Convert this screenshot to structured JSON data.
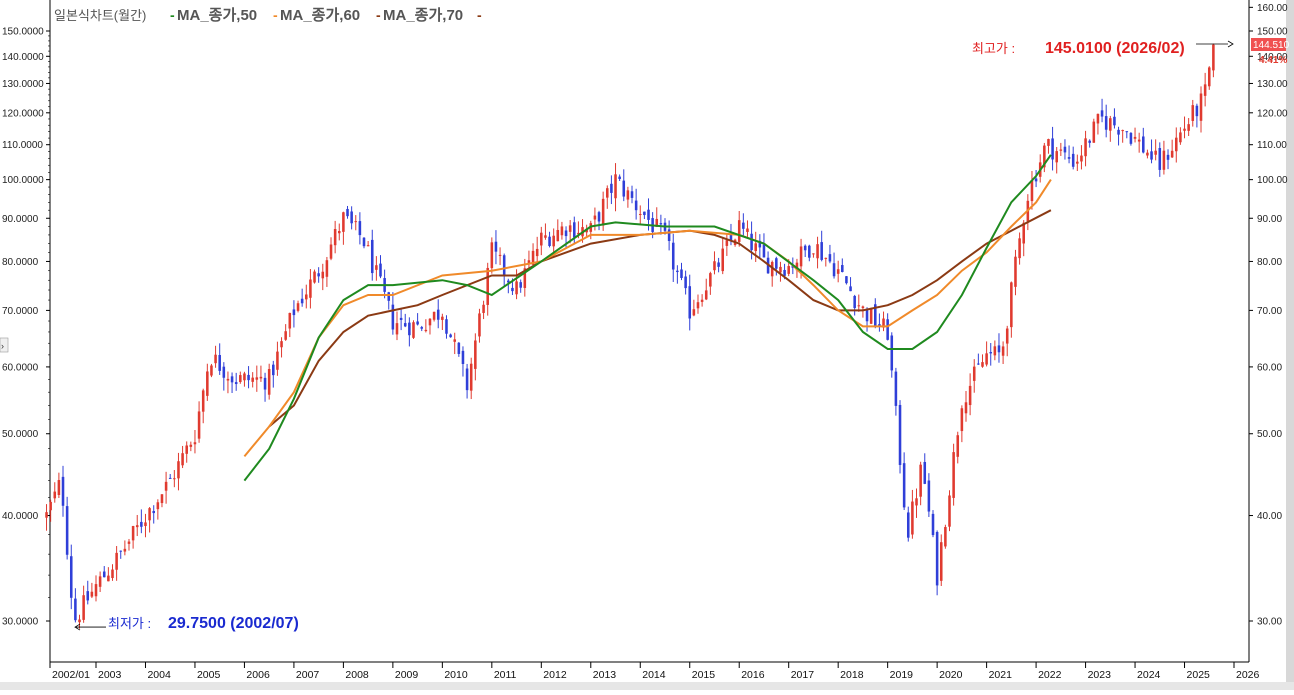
{
  "header": {
    "title": "일본식차트(월간)",
    "ma_labels": [
      "MA_종가,50",
      "MA_종가,60",
      "MA_종가,70"
    ]
  },
  "annotations": {
    "high": {
      "label": "최고가 :",
      "value": "145.0100 (2026/02)"
    },
    "low": {
      "label": "최저가 :",
      "value": "29.7500 (2002/07)"
    },
    "last_price": "144.510",
    "last_change": "4.41%"
  },
  "colors": {
    "up": "#e03a2f",
    "down": "#2f3fd8",
    "ma50": "#1f8a1f",
    "ma60": "#f08a2a",
    "ma70": "#8b3a14",
    "high_text": "#e02020",
    "low_text": "#1a2ad0",
    "last_box": "#f05050"
  },
  "chart_data": {
    "type": "candlestick",
    "period": "monthly",
    "scale": "log",
    "ylim": [
      29,
      160
    ],
    "y_ticks_left": [
      "150.0000",
      "140.0000",
      "130.0000",
      "120.0000",
      "110.0000",
      "100.0000",
      "90.0000",
      "80.0000",
      "70.0000",
      "60.0000",
      "50.0000",
      "40.0000",
      "30.0000"
    ],
    "y_ticks_right": [
      "160.00",
      "150.00",
      "140.00",
      "130.00",
      "120.00",
      "110.00",
      "100.00",
      "90.00",
      "80.00",
      "70.00",
      "60.00",
      "50.00",
      "40.00",
      "30.00"
    ],
    "x_ticks": [
      "2002/01",
      "2003",
      "2004",
      "2005",
      "2006",
      "2007",
      "2008",
      "2009",
      "2010",
      "2011",
      "2012",
      "2013",
      "2014",
      "2015",
      "2016",
      "2017",
      "2018",
      "2019",
      "2020",
      "2021",
      "2022",
      "2023",
      "2024",
      "2025",
      "2026"
    ],
    "price_path": [
      [
        2002.0,
        40
      ],
      [
        2002.3,
        44
      ],
      [
        2002.55,
        30
      ],
      [
        2003.0,
        33
      ],
      [
        2003.5,
        36
      ],
      [
        2004.0,
        40
      ],
      [
        2004.5,
        44
      ],
      [
        2005.0,
        50
      ],
      [
        2005.3,
        62
      ],
      [
        2005.8,
        58
      ],
      [
        2006.5,
        58
      ],
      [
        2007.0,
        70
      ],
      [
        2007.5,
        78
      ],
      [
        2008.0,
        90
      ],
      [
        2008.4,
        85
      ],
      [
        2009.0,
        68
      ],
      [
        2009.5,
        67
      ],
      [
        2010.0,
        70
      ],
      [
        2010.5,
        57
      ],
      [
        2011.0,
        82
      ],
      [
        2011.5,
        74
      ],
      [
        2012.0,
        85
      ],
      [
        2012.5,
        88
      ],
      [
        2013.0,
        87
      ],
      [
        2013.5,
        100
      ],
      [
        2014.0,
        92
      ],
      [
        2014.5,
        85
      ],
      [
        2015.0,
        70
      ],
      [
        2015.5,
        78
      ],
      [
        2016.0,
        88
      ],
      [
        2016.5,
        80
      ],
      [
        2017.0,
        79
      ],
      [
        2017.5,
        84
      ],
      [
        2018.0,
        78
      ],
      [
        2018.5,
        70
      ],
      [
        2019.0,
        66
      ],
      [
        2019.4,
        38
      ],
      [
        2019.7,
        46
      ],
      [
        2020.0,
        34
      ],
      [
        2020.5,
        55
      ],
      [
        2021.0,
        62
      ],
      [
        2021.3,
        62
      ],
      [
        2021.8,
        95
      ],
      [
        2022.2,
        110
      ],
      [
        2022.8,
        105
      ],
      [
        2023.3,
        118
      ],
      [
        2023.8,
        115
      ],
      [
        2024.5,
        104
      ],
      [
        2024.9,
        113
      ],
      [
        2025.4,
        125
      ],
      [
        2025.6,
        144.5
      ]
    ],
    "extremes": {
      "high": 145.01,
      "high_date": "2026/02",
      "low": 29.75,
      "low_date": "2002/07"
    },
    "ma": {
      "MA50": [
        [
          2006.0,
          44
        ],
        [
          2006.5,
          48
        ],
        [
          2007.0,
          55
        ],
        [
          2007.5,
          65
        ],
        [
          2008.0,
          72
        ],
        [
          2008.5,
          75
        ],
        [
          2009.0,
          75
        ],
        [
          2010.0,
          76
        ],
        [
          2010.5,
          75
        ],
        [
          2011.0,
          73
        ],
        [
          2012.0,
          80
        ],
        [
          2013.0,
          88
        ],
        [
          2013.5,
          89
        ],
        [
          2014.5,
          88
        ],
        [
          2015.5,
          88
        ],
        [
          2016.5,
          84
        ],
        [
          2017.5,
          76
        ],
        [
          2018.0,
          72
        ],
        [
          2018.5,
          66
        ],
        [
          2019.0,
          63
        ],
        [
          2019.5,
          63
        ],
        [
          2020.0,
          66
        ],
        [
          2020.5,
          73
        ],
        [
          2021.0,
          83
        ],
        [
          2021.5,
          94
        ],
        [
          2022.0,
          101
        ],
        [
          2022.3,
          107
        ]
      ],
      "MA60": [
        [
          2006.0,
          47
        ],
        [
          2006.5,
          51
        ],
        [
          2007.0,
          56
        ],
        [
          2007.5,
          65
        ],
        [
          2008.0,
          71
        ],
        [
          2008.5,
          73
        ],
        [
          2009.0,
          73
        ],
        [
          2010.0,
          77
        ],
        [
          2011.0,
          78
        ],
        [
          2012.0,
          80
        ],
        [
          2013.0,
          86
        ],
        [
          2014.0,
          86
        ],
        [
          2015.0,
          87
        ],
        [
          2016.0,
          86
        ],
        [
          2016.5,
          84
        ],
        [
          2017.0,
          80
        ],
        [
          2017.5,
          75
        ],
        [
          2018.0,
          70
        ],
        [
          2018.5,
          67
        ],
        [
          2019.0,
          67
        ],
        [
          2019.5,
          70
        ],
        [
          2020.0,
          73
        ],
        [
          2020.5,
          78
        ],
        [
          2021.0,
          82
        ],
        [
          2021.5,
          88
        ],
        [
          2022.0,
          94
        ],
        [
          2022.3,
          100
        ]
      ],
      "MA70": [
        [
          2006.5,
          51
        ],
        [
          2007.0,
          54
        ],
        [
          2007.5,
          61
        ],
        [
          2008.0,
          66
        ],
        [
          2008.5,
          69
        ],
        [
          2009.0,
          70
        ],
        [
          2009.5,
          71
        ],
        [
          2010.0,
          73
        ],
        [
          2011.0,
          77
        ],
        [
          2011.5,
          77
        ],
        [
          2012.0,
          80
        ],
        [
          2013.0,
          84
        ],
        [
          2014.0,
          86
        ],
        [
          2015.0,
          87
        ],
        [
          2015.5,
          86
        ],
        [
          2016.0,
          84
        ],
        [
          2016.5,
          80
        ],
        [
          2017.0,
          76
        ],
        [
          2017.5,
          72
        ],
        [
          2018.0,
          70
        ],
        [
          2018.5,
          70
        ],
        [
          2019.0,
          71
        ],
        [
          2019.5,
          73
        ],
        [
          2020.0,
          76
        ],
        [
          2020.5,
          80
        ],
        [
          2021.0,
          84
        ],
        [
          2021.5,
          87
        ],
        [
          2022.3,
          92
        ]
      ]
    }
  }
}
